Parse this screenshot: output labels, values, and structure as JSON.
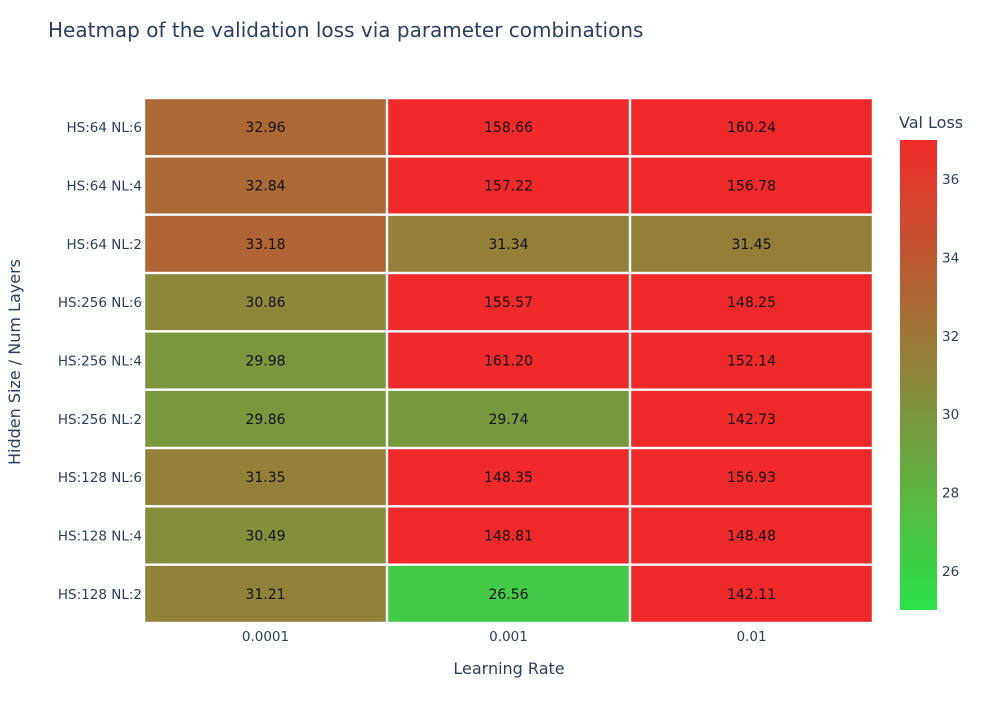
{
  "chart_data": {
    "type": "heatmap",
    "title": "Heatmap of the validation loss via parameter combinations",
    "xlabel": "Learning Rate",
    "ylabel": "Hidden Size / Num Layers",
    "x": [
      "0.0001",
      "0.001",
      "0.01"
    ],
    "y": [
      "HS:64 NL:6",
      "HS:64 NL:4",
      "HS:64 NL:2",
      "HS:256 NL:6",
      "HS:256 NL:4",
      "HS:256 NL:2",
      "HS:128 NL:6",
      "HS:128 NL:4",
      "HS:128 NL:2"
    ],
    "z": [
      [
        32.96,
        158.66,
        160.24
      ],
      [
        32.84,
        157.22,
        156.78
      ],
      [
        33.18,
        31.34,
        31.45
      ],
      [
        30.86,
        155.57,
        148.25
      ],
      [
        29.98,
        161.2,
        152.14
      ],
      [
        29.86,
        29.74,
        142.73
      ],
      [
        31.35,
        148.35,
        156.93
      ],
      [
        30.49,
        148.81,
        148.48
      ],
      [
        31.21,
        26.56,
        142.11
      ]
    ],
    "z_labels": [
      [
        "32.96",
        "158.66",
        "160.24"
      ],
      [
        "32.84",
        "157.22",
        "156.78"
      ],
      [
        "33.18",
        "31.34",
        "31.45"
      ],
      [
        "30.86",
        "155.57",
        "148.25"
      ],
      [
        "29.98",
        "161.20",
        "152.14"
      ],
      [
        "29.86",
        "29.74",
        "142.73"
      ],
      [
        "31.35",
        "148.35",
        "156.93"
      ],
      [
        "30.49",
        "148.81",
        "148.48"
      ],
      [
        "31.21",
        "26.56",
        "142.11"
      ]
    ],
    "colorbar": {
      "title": "Val Loss",
      "range": [
        25,
        37
      ],
      "ticks": [
        26,
        28,
        30,
        32,
        34,
        36
      ],
      "colors": [
        "#2ae24a",
        "#f02a2a"
      ]
    }
  }
}
